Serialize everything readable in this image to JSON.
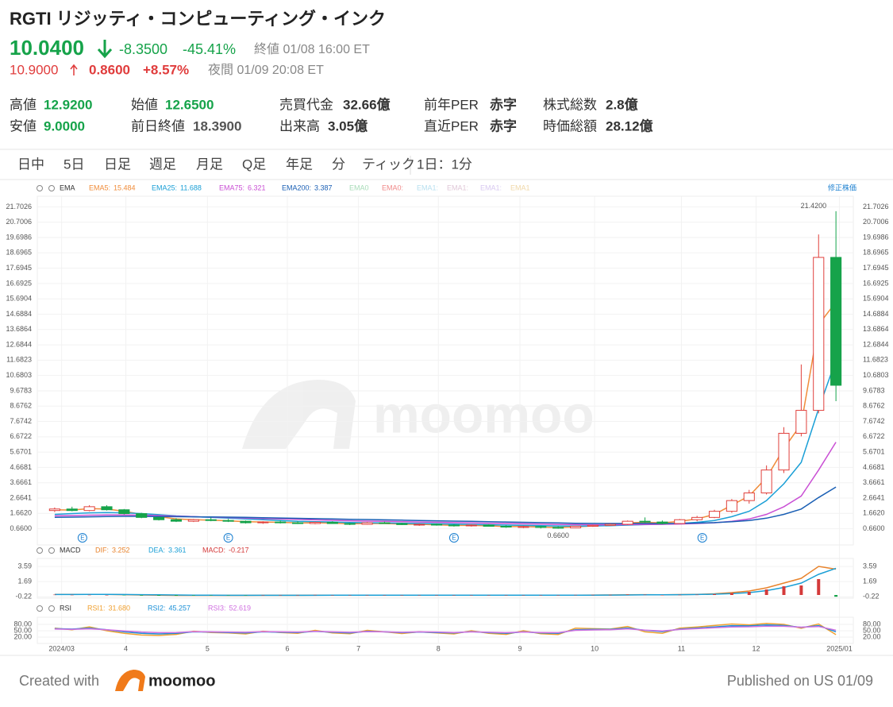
{
  "header": {
    "title": "RGTI リジッティ・コンピューティング・インク",
    "price": "10.0400",
    "change": "-8.3500",
    "change_pct": "-45.41%",
    "close_time": "終値 01/08 16:00 ET",
    "ah_price": "10.9000",
    "ah_change": "0.8600",
    "ah_change_pct": "+8.57%",
    "ah_time": "夜間 01/09 20:08 ET"
  },
  "stats": [
    {
      "label": "高値",
      "value": "12.9200",
      "color": "#16a34a"
    },
    {
      "label": "始値",
      "value": "12.6500",
      "color": "#16a34a"
    },
    {
      "label": "売買代金",
      "value": "32.66億",
      "color": "#333333"
    },
    {
      "label": "前年PER",
      "value": "赤字",
      "color": "#333333"
    },
    {
      "label": "株式総数",
      "value": "2.8億",
      "color": "#333333"
    },
    {
      "label": "安値",
      "value": "9.0000",
      "color": "#16a34a"
    },
    {
      "label": "前日終値",
      "value": "18.3900",
      "color": "#555555"
    },
    {
      "label": "出来高",
      "value": "3.05億",
      "color": "#333333"
    },
    {
      "label": "直近PER",
      "value": "赤字",
      "color": "#333333"
    },
    {
      "label": "時価総額",
      "value": "28.12億",
      "color": "#333333"
    }
  ],
  "tabs": [
    "日中",
    "5日",
    "日足",
    "週足",
    "月足",
    "Q足",
    "年足",
    "分",
    "ティック"
  ],
  "active_tab": 2,
  "interval": "1日：1分",
  "watermark": "moomoo",
  "footer": {
    "created": "Created with",
    "brand": "moomoo",
    "published": "Published on US 01/09"
  },
  "chart_data": [
    {
      "type": "candlestick",
      "title": "EMA",
      "adjust_label": "修正株価",
      "up_color": "#e0403c",
      "down_color": "#16a34a",
      "xlim": [
        -1,
        46
      ],
      "xticks": [
        {
          "value": 0.4,
          "label": "2024/03"
        },
        {
          "value": 4.1,
          "label": "4"
        },
        {
          "value": 8.8,
          "label": "5"
        },
        {
          "value": 13.4,
          "label": "6"
        },
        {
          "value": 17.5,
          "label": "7"
        },
        {
          "value": 22.1,
          "label": "8"
        },
        {
          "value": 26.8,
          "label": "9"
        },
        {
          "value": 31.1,
          "label": "10"
        },
        {
          "value": 36.1,
          "label": "11"
        },
        {
          "value": 40.4,
          "label": "12"
        },
        {
          "value": 45.2,
          "label": "2025/01"
        }
      ],
      "ylim": [
        -0.4,
        22.4
      ],
      "yticks": [
        {
          "value": 0.66,
          "label": "0.6600"
        },
        {
          "value": 1.662,
          "label": "1.6620"
        },
        {
          "value": 2.6641,
          "label": "2.6641"
        },
        {
          "value": 3.6661,
          "label": "3.6661"
        },
        {
          "value": 4.6681,
          "label": "4.6681"
        },
        {
          "value": 5.6701,
          "label": "5.6701"
        },
        {
          "value": 6.6722,
          "label": "6.6722"
        },
        {
          "value": 7.6742,
          "label": "7.6742"
        },
        {
          "value": 8.6762,
          "label": "8.6762"
        },
        {
          "value": 9.6783,
          "label": "9.6783"
        },
        {
          "value": 10.6803,
          "label": "10.6803"
        },
        {
          "value": 11.6823,
          "label": "11.6823"
        },
        {
          "value": 12.6844,
          "label": "12.6844"
        },
        {
          "value": 13.6864,
          "label": "13.6864"
        },
        {
          "value": 14.6884,
          "label": "14.6884"
        },
        {
          "value": 15.6904,
          "label": "15.6904"
        },
        {
          "value": 16.6925,
          "label": "16.6925"
        },
        {
          "value": 17.6945,
          "label": "17.6945"
        },
        {
          "value": 18.6965,
          "label": "18.6965"
        },
        {
          "value": 19.6986,
          "label": "19.6986"
        },
        {
          "value": 20.7006,
          "label": "20.7006"
        },
        {
          "value": 21.7026,
          "label": "21.7026"
        }
      ],
      "open": [
        1.85,
        1.95,
        1.85,
        2.1,
        1.9,
        1.65,
        1.4,
        1.25,
        1.15,
        1.25,
        1.2,
        1.15,
        1.05,
        1.1,
        1.05,
        1.0,
        1.08,
        1.0,
        0.95,
        1.05,
        1.0,
        0.93,
        0.95,
        0.9,
        0.85,
        0.9,
        0.82,
        0.78,
        0.8,
        0.75,
        0.72,
        0.82,
        0.88,
        0.95,
        1.15,
        1.1,
        1.0,
        1.25,
        1.4,
        1.8,
        2.5,
        3.0,
        4.5,
        6.9,
        8.4,
        18.4
      ],
      "high": [
        2.05,
        2.1,
        2.2,
        2.2,
        1.95,
        1.7,
        1.45,
        1.35,
        1.3,
        1.4,
        1.3,
        1.2,
        1.15,
        1.2,
        1.15,
        1.12,
        1.15,
        1.05,
        1.1,
        1.12,
        1.05,
        1.0,
        1.0,
        0.95,
        0.95,
        0.95,
        0.88,
        0.85,
        0.85,
        0.82,
        0.85,
        0.92,
        1.0,
        1.2,
        1.4,
        1.2,
        1.3,
        1.5,
        1.9,
        2.6,
        3.2,
        4.8,
        7.3,
        11.4,
        19.9,
        21.42
      ],
      "low": [
        1.75,
        1.8,
        1.8,
        1.85,
        1.6,
        1.35,
        1.2,
        1.1,
        1.1,
        1.15,
        1.1,
        1.0,
        0.98,
        1.0,
        0.97,
        0.95,
        0.98,
        0.9,
        0.92,
        0.98,
        0.9,
        0.85,
        0.86,
        0.8,
        0.8,
        0.8,
        0.72,
        0.7,
        0.68,
        0.66,
        0.7,
        0.78,
        0.85,
        0.9,
        1.05,
        0.95,
        0.98,
        1.15,
        1.35,
        1.7,
        2.3,
        2.9,
        4.3,
        6.7,
        8.2,
        9.0
      ],
      "close": [
        1.95,
        1.85,
        2.1,
        1.9,
        1.65,
        1.4,
        1.25,
        1.15,
        1.25,
        1.2,
        1.15,
        1.05,
        1.1,
        1.05,
        1.0,
        1.08,
        1.0,
        0.95,
        1.05,
        1.0,
        0.93,
        0.95,
        0.9,
        0.85,
        0.9,
        0.82,
        0.78,
        0.8,
        0.75,
        0.72,
        0.82,
        0.88,
        0.95,
        1.15,
        1.1,
        1.0,
        1.25,
        1.4,
        1.8,
        2.5,
        3.0,
        4.5,
        6.9,
        8.4,
        18.4,
        10.04
      ],
      "series": [
        {
          "name": "EMA5:",
          "color": "#f08c3a",
          "legend_value": 15.484,
          "values": [
            1.9,
            1.88,
            1.98,
            1.95,
            1.8,
            1.6,
            1.45,
            1.3,
            1.25,
            1.22,
            1.18,
            1.12,
            1.1,
            1.08,
            1.04,
            1.05,
            1.03,
            0.98,
            1.0,
            1.0,
            0.96,
            0.95,
            0.92,
            0.88,
            0.88,
            0.85,
            0.8,
            0.8,
            0.77,
            0.74,
            0.78,
            0.84,
            0.92,
            1.05,
            1.08,
            1.04,
            1.15,
            1.3,
            1.6,
            2.2,
            2.8,
            4.0,
            5.9,
            7.5,
            14.0,
            15.484
          ]
        },
        {
          "name": "EMA25:",
          "color": "#1a9fd6",
          "legend_value": 11.688,
          "values": [
            1.6,
            1.65,
            1.7,
            1.72,
            1.7,
            1.65,
            1.58,
            1.5,
            1.45,
            1.4,
            1.35,
            1.3,
            1.25,
            1.2,
            1.15,
            1.12,
            1.1,
            1.07,
            1.05,
            1.04,
            1.02,
            1.0,
            0.98,
            0.96,
            0.94,
            0.92,
            0.9,
            0.88,
            0.86,
            0.84,
            0.83,
            0.84,
            0.86,
            0.9,
            0.93,
            0.95,
            1.0,
            1.08,
            1.2,
            1.45,
            1.8,
            2.5,
            3.6,
            5.0,
            8.5,
            11.688
          ]
        },
        {
          "name": "EMA75:",
          "color": "#c94fd4",
          "legend_value": 6.321,
          "values": [
            1.5,
            1.52,
            1.55,
            1.56,
            1.56,
            1.55,
            1.52,
            1.48,
            1.45,
            1.42,
            1.39,
            1.36,
            1.33,
            1.3,
            1.27,
            1.24,
            1.21,
            1.18,
            1.16,
            1.14,
            1.12,
            1.1,
            1.08,
            1.06,
            1.04,
            1.02,
            1.0,
            0.98,
            0.96,
            0.94,
            0.93,
            0.92,
            0.92,
            0.93,
            0.94,
            0.95,
            0.97,
            1.0,
            1.05,
            1.15,
            1.3,
            1.6,
            2.1,
            2.8,
            4.5,
            6.321
          ]
        },
        {
          "name": "EMA200:",
          "color": "#1a5fb4",
          "legend_value": 3.387,
          "values": [
            1.4,
            1.42,
            1.44,
            1.46,
            1.47,
            1.47,
            1.46,
            1.45,
            1.44,
            1.43,
            1.42,
            1.4,
            1.38,
            1.36,
            1.34,
            1.32,
            1.3,
            1.28,
            1.26,
            1.24,
            1.22,
            1.2,
            1.18,
            1.16,
            1.14,
            1.12,
            1.1,
            1.08,
            1.06,
            1.04,
            1.02,
            1.01,
            1.0,
            1.0,
            1.0,
            1.0,
            1.01,
            1.03,
            1.06,
            1.12,
            1.2,
            1.35,
            1.6,
            1.95,
            2.7,
            3.387
          ]
        }
      ],
      "extra_legend": [
        {
          "name": "EMA0",
          "color": "#a8dcb8"
        },
        {
          "name": "EMA0:",
          "color": "#f08a8a"
        },
        {
          "name": "EMA1:",
          "color": "#b8e0f0"
        },
        {
          "name": "EMA1:",
          "color": "#e0c8d8"
        },
        {
          "name": "EMA1:",
          "color": "#d8c8f0"
        },
        {
          "name": "EMA1",
          "color": "#f0d8a8"
        }
      ],
      "annotations": [
        {
          "label": "21.4200",
          "x": 45,
          "value": 21.42,
          "position": "left"
        },
        {
          "label": "0.6600",
          "x": 29,
          "value": 0.66,
          "position": "below"
        }
      ],
      "events": [
        {
          "x": 1.6,
          "label": "E"
        },
        {
          "x": 10.0,
          "label": "E"
        },
        {
          "x": 23.0,
          "label": "E"
        },
        {
          "x": 37.3,
          "label": "E"
        }
      ]
    },
    {
      "type": "macd",
      "title": "MACD",
      "xlim": [
        -1,
        46
      ],
      "ylim": [
        -0.4,
        4.6
      ],
      "yticks": [
        3.59,
        1.69,
        -0.22
      ],
      "series": [
        {
          "name": "DIF:",
          "type": "line",
          "color": "#e8832c",
          "legend_value": 3.252,
          "values": [
            0.08,
            0.07,
            0.08,
            0.07,
            0.04,
            0.0,
            -0.03,
            -0.05,
            -0.05,
            -0.05,
            -0.05,
            -0.05,
            -0.04,
            -0.04,
            -0.04,
            -0.03,
            -0.03,
            -0.03,
            -0.03,
            -0.03,
            -0.03,
            -0.03,
            -0.03,
            -0.03,
            -0.03,
            -0.03,
            -0.03,
            -0.03,
            -0.03,
            -0.03,
            -0.02,
            -0.01,
            0.0,
            0.03,
            0.04,
            0.03,
            0.05,
            0.08,
            0.15,
            0.3,
            0.5,
            0.9,
            1.5,
            2.1,
            3.6,
            3.252
          ]
        },
        {
          "name": "DEA:",
          "type": "line",
          "color": "#1a9fd6",
          "legend_value": 3.361,
          "values": [
            0.06,
            0.06,
            0.07,
            0.07,
            0.06,
            0.04,
            0.02,
            0.0,
            -0.02,
            -0.03,
            -0.04,
            -0.04,
            -0.04,
            -0.04,
            -0.04,
            -0.04,
            -0.03,
            -0.03,
            -0.03,
            -0.03,
            -0.03,
            -0.03,
            -0.03,
            -0.03,
            -0.03,
            -0.03,
            -0.03,
            -0.03,
            -0.03,
            -0.03,
            -0.03,
            -0.02,
            -0.01,
            0.0,
            0.02,
            0.03,
            0.04,
            0.06,
            0.1,
            0.18,
            0.3,
            0.55,
            0.95,
            1.5,
            2.6,
            3.361
          ]
        },
        {
          "name": "MACD:",
          "type": "bar",
          "color": "#d43a3a",
          "negative_color": "#16a34a",
          "legend_value": -0.217,
          "values": [
            0.04,
            0.02,
            0.02,
            0,
            -0.04,
            -0.08,
            -0.1,
            -0.1,
            -0.06,
            -0.04,
            -0.02,
            -0.02,
            0,
            0,
            0,
            0.02,
            0,
            0,
            0,
            0,
            0,
            0,
            0,
            0,
            0,
            0,
            0,
            0,
            0,
            0,
            0.02,
            0.02,
            0.02,
            0.06,
            0.04,
            0,
            0.02,
            0.04,
            0.1,
            0.24,
            0.4,
            0.7,
            1.1,
            1.2,
            2.0,
            -0.217
          ]
        }
      ]
    },
    {
      "type": "rsi",
      "title": "RSI",
      "xlim": [
        -1,
        46
      ],
      "ylim": [
        -10,
        114
      ],
      "yticks": [
        {
          "value": 80,
          "label": "80.00"
        },
        {
          "value": 50,
          "label": "50.00"
        },
        {
          "value": 20,
          "label": "20.00"
        }
      ],
      "series": [
        {
          "name": "RSI1:",
          "type": "line",
          "color": "#f0a030",
          "legend_value": 31.68,
          "legend_label": "31.680",
          "values": [
            62,
            55,
            68,
            50,
            38,
            30,
            28,
            33,
            48,
            42,
            40,
            35,
            48,
            42,
            38,
            52,
            40,
            36,
            52,
            45,
            37,
            45,
            40,
            35,
            50,
            38,
            33,
            50,
            36,
            32,
            62,
            60,
            58,
            70,
            45,
            38,
            62,
            68,
            75,
            82,
            78,
            85,
            80,
            62,
            82,
            31.68
          ]
        },
        {
          "name": "RSI2:",
          "type": "line",
          "color": "#1a8fd6",
          "legend_value": 45.257,
          "values": [
            60,
            58,
            62,
            55,
            45,
            38,
            35,
            38,
            45,
            44,
            42,
            40,
            45,
            43,
            42,
            47,
            43,
            40,
            47,
            45,
            41,
            44,
            42,
            40,
            46,
            41,
            38,
            45,
            40,
            38,
            55,
            57,
            57,
            63,
            52,
            46,
            58,
            63,
            68,
            74,
            73,
            78,
            75,
            66,
            74,
            45.257
          ]
        },
        {
          "name": "RSI3:",
          "type": "line",
          "color": "#d070e0",
          "legend_value": 52.619,
          "values": [
            58,
            57,
            59,
            55,
            49,
            44,
            41,
            42,
            46,
            45,
            44,
            43,
            46,
            45,
            44,
            47,
            45,
            43,
            46,
            45,
            43,
            45,
            44,
            42,
            45,
            43,
            41,
            44,
            42,
            41,
            52,
            54,
            55,
            59,
            53,
            49,
            56,
            60,
            64,
            68,
            69,
            72,
            71,
            67,
            70,
            52.619
          ]
        }
      ]
    }
  ]
}
